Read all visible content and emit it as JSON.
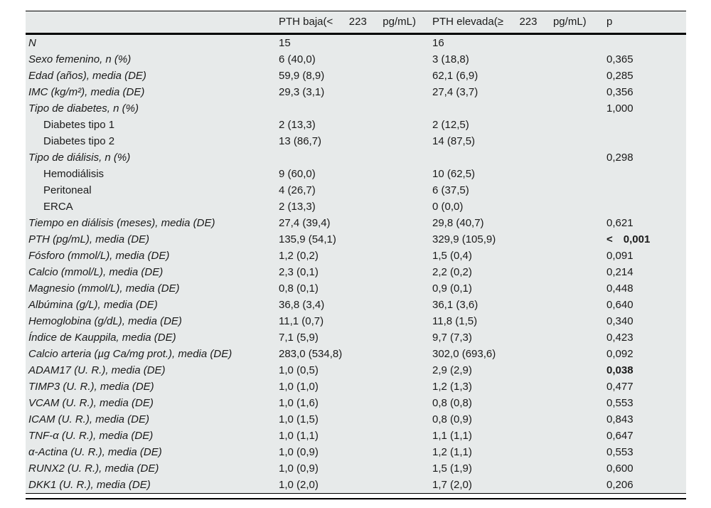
{
  "table": {
    "header": {
      "col_label": "",
      "col_pth_baja": "PTH baja(<   223   pg/mL)",
      "col_pth_elevada": "PTH elevada(≥   223   pg/mL)",
      "col_p": "p"
    },
    "colors": {
      "band_background": "#e7eaea",
      "rule": "#000000",
      "text": "#1a1a1a"
    },
    "rows": [
      {
        "label": "N",
        "indent": false,
        "italic": true,
        "v1": "15",
        "v2": "16",
        "p": "",
        "bold": false
      },
      {
        "label": "Sexo femenino, n (%)",
        "indent": false,
        "italic": true,
        "v1": "6 (40,0)",
        "v2": "3 (18,8)",
        "p": "0,365",
        "bold": false
      },
      {
        "label": "Edad (años), media (DE)",
        "indent": false,
        "italic": true,
        "v1": "59,9 (8,9)",
        "v2": "62,1 (6,9)",
        "p": "0,285",
        "bold": false
      },
      {
        "label": "IMC (kg/m²), media (DE)",
        "indent": false,
        "italic": true,
        "v1": "29,3 (3,1)",
        "v2": "27,4 (3,7)",
        "p": "0,356",
        "bold": false
      },
      {
        "label": "Tipo de diabetes, n (%)",
        "indent": false,
        "italic": true,
        "v1": "",
        "v2": "",
        "p": "1,000",
        "bold": false
      },
      {
        "label": "Diabetes tipo 1",
        "indent": true,
        "italic": false,
        "v1": "2 (13,3)",
        "v2": "2 (12,5)",
        "p": "",
        "bold": false
      },
      {
        "label": "Diabetes tipo 2",
        "indent": true,
        "italic": false,
        "v1": "13 (86,7)",
        "v2": "14 (87,5)",
        "p": "",
        "bold": false
      },
      {
        "label": "Tipo de diálisis, n (%)",
        "indent": false,
        "italic": true,
        "v1": "",
        "v2": "",
        "p": "0,298",
        "bold": false
      },
      {
        "label": "Hemodiálisis",
        "indent": true,
        "italic": false,
        "v1": "9 (60,0)",
        "v2": "10 (62,5)",
        "p": "",
        "bold": false
      },
      {
        "label": "Peritoneal",
        "indent": true,
        "italic": false,
        "v1": "4 (26,7)",
        "v2": "6 (37,5)",
        "p": "",
        "bold": false
      },
      {
        "label": "ERCA",
        "indent": true,
        "italic": false,
        "v1": "2 (13,3)",
        "v2": "0 (0,0)",
        "p": "",
        "bold": false
      },
      {
        "label": "Tiempo en diálisis (meses), media (DE)",
        "indent": false,
        "italic": true,
        "v1": "27,4 (39,4)",
        "v2": "29,8 (40,7)",
        "p": "0,621",
        "bold": false
      },
      {
        "label": "PTH (pg/mL), media (DE)",
        "indent": false,
        "italic": true,
        "v1": "135,9 (54,1)",
        "v2": "329,9 (105,9)",
        "p": "<  0,001",
        "bold": true
      },
      {
        "label": "Fósforo (mmol/L), media (DE)",
        "indent": false,
        "italic": true,
        "v1": "1,2 (0,2)",
        "v2": "1,5 (0,4)",
        "p": "0,091",
        "bold": false
      },
      {
        "label": "Calcio (mmol/L), media (DE)",
        "indent": false,
        "italic": true,
        "v1": "2,3 (0,1)",
        "v2": "2,2 (0,2)",
        "p": "0,214",
        "bold": false
      },
      {
        "label": "Magnesio (mmol/L), media (DE)",
        "indent": false,
        "italic": true,
        "v1": "0,8 (0,1)",
        "v2": "0,9 (0,1)",
        "p": "0,448",
        "bold": false
      },
      {
        "label": "Albúmina (g/L), media (DE)",
        "indent": false,
        "italic": true,
        "v1": "36,8 (3,4)",
        "v2": "36,1 (3,6)",
        "p": "0,640",
        "bold": false
      },
      {
        "label": "Hemoglobina (g/dL), media (DE)",
        "indent": false,
        "italic": true,
        "v1": "11,1 (0,7)",
        "v2": "11,8 (1,5)",
        "p": "0,340",
        "bold": false
      },
      {
        "label": "Índice de Kauppila, media (DE)",
        "indent": false,
        "italic": true,
        "v1": "7,1 (5,9)",
        "v2": "9,7 (7,3)",
        "p": "0,423",
        "bold": false
      },
      {
        "label": "Calcio arteria (µg Ca/mg prot.), media (DE)",
        "indent": false,
        "italic": true,
        "v1": "283,0 (534,8)",
        "v2": "302,0 (693,6)",
        "p": "0,092",
        "bold": false
      },
      {
        "label": "ADAM17 (U. R.), media (DE)",
        "indent": false,
        "italic": true,
        "v1": "1,0 (0,5)",
        "v2": "2,9 (2,9)",
        "p": "0,038",
        "bold": true
      },
      {
        "label": "TIMP3 (U. R.), media (DE)",
        "indent": false,
        "italic": true,
        "v1": "1,0 (1,0)",
        "v2": "1,2 (1,3)",
        "p": "0,477",
        "bold": false
      },
      {
        "label": "VCAM (U. R.), media (DE)",
        "indent": false,
        "italic": true,
        "v1": "1,0 (1,6)",
        "v2": "0,8 (0,8)",
        "p": "0,553",
        "bold": false
      },
      {
        "label": "ICAM (U. R.), media (DE)",
        "indent": false,
        "italic": true,
        "v1": "1,0 (1,5)",
        "v2": "0,8 (0,9)",
        "p": "0,843",
        "bold": false
      },
      {
        "label": "TNF-α (U. R.), media (DE)",
        "indent": false,
        "italic": true,
        "v1": "1,0 (1,1)",
        "v2": "1,1 (1,1)",
        "p": "0,647",
        "bold": false
      },
      {
        "label": "α-Actina (U. R.), media (DE)",
        "indent": false,
        "italic": true,
        "v1": "1,0 (0,9)",
        "v2": "1,2 (1,1)",
        "p": "0,553",
        "bold": false
      },
      {
        "label": "RUNX2 (U. R.), media (DE)",
        "indent": false,
        "italic": true,
        "v1": "1,0 (0,9)",
        "v2": "1,5 (1,9)",
        "p": "0,600",
        "bold": false
      },
      {
        "label": "DKK1 (U. R.), media (DE)",
        "indent": false,
        "italic": true,
        "v1": "1,0 (2,0)",
        "v2": "1,7 (2,0)",
        "p": "0,206",
        "bold": false
      }
    ]
  }
}
